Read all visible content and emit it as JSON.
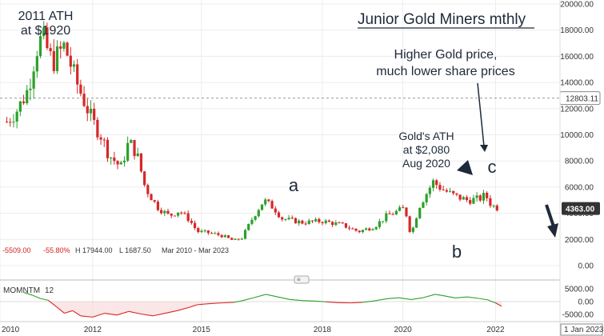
{
  "chart_data": {
    "type": "candlestick",
    "title": "Junior Gold Miners mthly",
    "price_axis": {
      "ylim": [
        0,
        20000
      ],
      "ticks": [
        "20000.00",
        "18000.00",
        "16000.00",
        "14000.00",
        "12000.00",
        "10000.00",
        "8000.00",
        "6000.00",
        "4000.00",
        "2000.00",
        "0.00"
      ]
    },
    "reference_line": {
      "label": "12803.11",
      "value": 12803.11
    },
    "last_price_label": "4363.00",
    "last_price_value": 4363,
    "up_color": "#2ca02c",
    "down_color": "#d62728",
    "x_axis_ticks": [
      "2010",
      "2012",
      "2015",
      "2018",
      "2020",
      "2022"
    ],
    "x_axis_extra_label": "1 Jan 2023",
    "stats": {
      "change": "-5509.00",
      "change_pct": "-55.80%",
      "high": "H 17944.00",
      "low": "L 1687.50",
      "range": "Mar 2010 - Mar 2023"
    },
    "annotations": {
      "ath_2011": [
        "2011 ATH",
        "at $1920"
      ],
      "higher_gold": [
        "Higher Gold price,",
        "much lower share prices"
      ],
      "gold_ath": [
        "Gold's ATH",
        "at $2,080",
        "Aug 2020"
      ],
      "wave_a": "a",
      "wave_b": "b",
      "wave_c": "c"
    },
    "path_points": [
      [
        2010.17,
        11000
      ],
      [
        2010.45,
        12000
      ],
      [
        2010.7,
        13500
      ],
      [
        2010.9,
        16500
      ],
      [
        2011.05,
        17500
      ],
      [
        2011.3,
        15500
      ],
      [
        2011.6,
        16800
      ],
      [
        2011.9,
        14000
      ],
      [
        2012.1,
        12500
      ],
      [
        2012.3,
        11000
      ],
      [
        2012.5,
        10000
      ],
      [
        2012.7,
        8500
      ],
      [
        2013.0,
        7500
      ],
      [
        2013.2,
        9500
      ],
      [
        2013.4,
        8500
      ],
      [
        2013.6,
        6000
      ],
      [
        2013.9,
        4500
      ],
      [
        2014.2,
        3800
      ],
      [
        2014.45,
        4200
      ],
      [
        2014.7,
        3500
      ],
      [
        2014.9,
        2600
      ],
      [
        2015.2,
        2500
      ],
      [
        2015.5,
        2300
      ],
      [
        2015.8,
        1900
      ],
      [
        2016.0,
        2100
      ],
      [
        2016.3,
        3800
      ],
      [
        2016.55,
        5000
      ],
      [
        2016.8,
        4400
      ],
      [
        2017.0,
        3600
      ],
      [
        2017.5,
        3300
      ],
      [
        2018.0,
        3400
      ],
      [
        2018.5,
        3100
      ],
      [
        2018.9,
        2600
      ],
      [
        2019.3,
        3000
      ],
      [
        2019.6,
        3800
      ],
      [
        2019.9,
        4200
      ],
      [
        2020.05,
        4400
      ],
      [
        2020.2,
        2300
      ],
      [
        2020.4,
        4500
      ],
      [
        2020.6,
        5600
      ],
      [
        2020.75,
        6400
      ],
      [
        2021.0,
        5800
      ],
      [
        2021.3,
        5300
      ],
      [
        2021.6,
        5000
      ],
      [
        2021.9,
        5100
      ],
      [
        2022.05,
        5400
      ],
      [
        2022.2,
        4600
      ],
      [
        2022.4,
        4363
      ]
    ],
    "indicator": {
      "label": "MOMNTM",
      "period": "12",
      "ticks": [
        "5000.00",
        "0.00",
        "-5000.00"
      ],
      "ylim": [
        -6500,
        6500
      ],
      "points": [
        [
          2010.6,
          3500
        ],
        [
          2010.8,
          2500
        ],
        [
          2011.0,
          1200
        ],
        [
          2011.2,
          500
        ],
        [
          2011.4,
          -2000
        ],
        [
          2011.6,
          -4500
        ],
        [
          2011.8,
          -3500
        ],
        [
          2012.0,
          -5500
        ],
        [
          2012.3,
          -6000
        ],
        [
          2012.6,
          -4500
        ],
        [
          2012.9,
          -5200
        ],
        [
          2013.2,
          -3800
        ],
        [
          2013.5,
          -4800
        ],
        [
          2013.8,
          -5500
        ],
        [
          2014.1,
          -4500
        ],
        [
          2014.4,
          -3500
        ],
        [
          2014.7,
          -2200
        ],
        [
          2014.9,
          -1200
        ],
        [
          2015.2,
          -800
        ],
        [
          2015.5,
          -500
        ],
        [
          2015.8,
          -300
        ],
        [
          2016.0,
          300
        ],
        [
          2016.3,
          1500
        ],
        [
          2016.6,
          2800
        ],
        [
          2016.9,
          1800
        ],
        [
          2017.2,
          800
        ],
        [
          2017.5,
          400
        ],
        [
          2017.8,
          200
        ],
        [
          2018.1,
          -100
        ],
        [
          2018.4,
          -400
        ],
        [
          2018.7,
          -500
        ],
        [
          2019.0,
          -300
        ],
        [
          2019.3,
          300
        ],
        [
          2019.6,
          1100
        ],
        [
          2019.9,
          1500
        ],
        [
          2020.2,
          800
        ],
        [
          2020.5,
          1500
        ],
        [
          2020.8,
          2800
        ],
        [
          2021.0,
          2300
        ],
        [
          2021.3,
          1400
        ],
        [
          2021.6,
          1800
        ],
        [
          2021.9,
          1200
        ],
        [
          2022.1,
          700
        ],
        [
          2022.3,
          -500
        ],
        [
          2022.45,
          -1800
        ]
      ]
    },
    "annotation_arrow_color": "#1e2a3a"
  }
}
